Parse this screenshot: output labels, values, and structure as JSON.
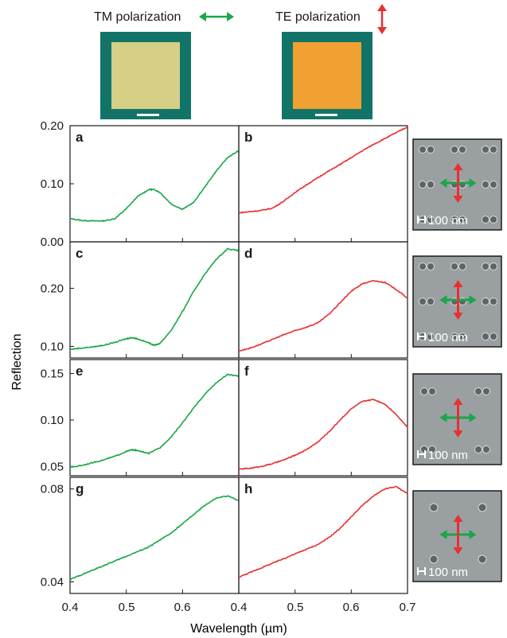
{
  "header": {
    "tm_label": "TM polarization",
    "te_label": "TE polarization",
    "tm_sample_color": "#d6cf86",
    "te_sample_color": "#f0a132",
    "frame_color": "#127468"
  },
  "colors": {
    "tm": "#1aa64a",
    "te": "#e8302f",
    "micrograph_bg": "#9aa0a2"
  },
  "axes": {
    "xlabel": "Wavelength (µm)",
    "ylabel": "Reflection"
  },
  "micrographs": [
    {
      "scale_label": "100 nm"
    },
    {
      "scale_label": "100 nm"
    },
    {
      "scale_label": "100 nm"
    },
    {
      "scale_label": "100 nm"
    }
  ],
  "chart_data": [
    {
      "type": "line",
      "panel": "a",
      "polarization": "TM",
      "color": "#1aa64a",
      "xlim": [
        0.4,
        0.7
      ],
      "ylim": [
        0.0,
        0.2
      ],
      "yticks": [
        "0.00",
        "0.10",
        "0.20"
      ],
      "x": [
        0.4,
        0.42,
        0.44,
        0.46,
        0.48,
        0.5,
        0.52,
        0.54,
        0.55,
        0.56,
        0.58,
        0.6,
        0.62,
        0.64,
        0.66,
        0.68,
        0.7
      ],
      "y": [
        0.04,
        0.037,
        0.036,
        0.036,
        0.04,
        0.057,
        0.078,
        0.09,
        0.09,
        0.085,
        0.065,
        0.056,
        0.068,
        0.095,
        0.122,
        0.145,
        0.157
      ]
    },
    {
      "type": "line",
      "panel": "b",
      "polarization": "TE",
      "color": "#e8302f",
      "xlim": [
        0.4,
        0.7
      ],
      "ylim": [
        0.0,
        0.2
      ],
      "yticks": [],
      "x": [
        0.4,
        0.42,
        0.44,
        0.46,
        0.48,
        0.5,
        0.52,
        0.54,
        0.56,
        0.58,
        0.6,
        0.62,
        0.64,
        0.66,
        0.68,
        0.7
      ],
      "y": [
        0.05,
        0.052,
        0.054,
        0.058,
        0.07,
        0.085,
        0.098,
        0.11,
        0.122,
        0.133,
        0.145,
        0.157,
        0.168,
        0.178,
        0.188,
        0.198
      ]
    },
    {
      "type": "line",
      "panel": "c",
      "polarization": "TM",
      "color": "#1aa64a",
      "xlim": [
        0.4,
        0.7
      ],
      "ylim": [
        0.08,
        0.28
      ],
      "yticks": [
        "0.10",
        "0.20"
      ],
      "x": [
        0.4,
        0.42,
        0.44,
        0.46,
        0.48,
        0.5,
        0.51,
        0.52,
        0.54,
        0.55,
        0.56,
        0.58,
        0.6,
        0.62,
        0.64,
        0.66,
        0.68,
        0.7
      ],
      "y": [
        0.095,
        0.097,
        0.099,
        0.102,
        0.107,
        0.113,
        0.115,
        0.113,
        0.106,
        0.102,
        0.105,
        0.128,
        0.16,
        0.195,
        0.225,
        0.25,
        0.268,
        0.265
      ]
    },
    {
      "type": "line",
      "panel": "d",
      "polarization": "TE",
      "color": "#e8302f",
      "xlim": [
        0.4,
        0.7
      ],
      "ylim": [
        0.08,
        0.28
      ],
      "yticks": [],
      "x": [
        0.4,
        0.42,
        0.44,
        0.46,
        0.48,
        0.5,
        0.52,
        0.54,
        0.56,
        0.58,
        0.6,
        0.62,
        0.64,
        0.66,
        0.68,
        0.7
      ],
      "y": [
        0.092,
        0.097,
        0.104,
        0.112,
        0.12,
        0.127,
        0.133,
        0.14,
        0.155,
        0.175,
        0.195,
        0.208,
        0.213,
        0.21,
        0.198,
        0.183
      ]
    },
    {
      "type": "line",
      "panel": "e",
      "polarization": "TM",
      "color": "#1aa64a",
      "xlim": [
        0.4,
        0.7
      ],
      "ylim": [
        0.04,
        0.165
      ],
      "yticks": [
        "0.05",
        "0.10",
        "0.15"
      ],
      "x": [
        0.4,
        0.42,
        0.44,
        0.46,
        0.48,
        0.5,
        0.51,
        0.52,
        0.54,
        0.56,
        0.58,
        0.6,
        0.62,
        0.64,
        0.66,
        0.68,
        0.7
      ],
      "y": [
        0.049,
        0.051,
        0.054,
        0.057,
        0.061,
        0.066,
        0.068,
        0.067,
        0.064,
        0.07,
        0.082,
        0.097,
        0.113,
        0.128,
        0.14,
        0.149,
        0.147
      ]
    },
    {
      "type": "line",
      "panel": "f",
      "polarization": "TE",
      "color": "#e8302f",
      "xlim": [
        0.4,
        0.7
      ],
      "ylim": [
        0.04,
        0.165
      ],
      "yticks": [],
      "x": [
        0.4,
        0.42,
        0.44,
        0.46,
        0.48,
        0.5,
        0.52,
        0.54,
        0.56,
        0.58,
        0.6,
        0.62,
        0.64,
        0.66,
        0.68,
        0.7
      ],
      "y": [
        0.047,
        0.048,
        0.05,
        0.053,
        0.057,
        0.062,
        0.068,
        0.076,
        0.087,
        0.1,
        0.112,
        0.12,
        0.122,
        0.117,
        0.106,
        0.092
      ]
    },
    {
      "type": "line",
      "panel": "g",
      "polarization": "TM",
      "color": "#1aa64a",
      "xlim": [
        0.4,
        0.7
      ],
      "ylim": [
        0.035,
        0.085
      ],
      "yticks": [
        "0.04",
        "0.08"
      ],
      "x": [
        0.4,
        0.42,
        0.44,
        0.46,
        0.48,
        0.5,
        0.52,
        0.54,
        0.56,
        0.58,
        0.6,
        0.62,
        0.64,
        0.66,
        0.68,
        0.7
      ],
      "y": [
        0.041,
        0.043,
        0.045,
        0.047,
        0.049,
        0.051,
        0.053,
        0.055,
        0.058,
        0.061,
        0.065,
        0.069,
        0.073,
        0.076,
        0.077,
        0.075
      ]
    },
    {
      "type": "line",
      "panel": "h",
      "polarization": "TE",
      "color": "#e8302f",
      "xlim": [
        0.4,
        0.7
      ],
      "ylim": [
        0.035,
        0.085
      ],
      "yticks": [],
      "x": [
        0.4,
        0.42,
        0.44,
        0.46,
        0.48,
        0.5,
        0.52,
        0.54,
        0.56,
        0.58,
        0.6,
        0.62,
        0.64,
        0.66,
        0.68,
        0.7
      ],
      "y": [
        0.042,
        0.044,
        0.046,
        0.048,
        0.05,
        0.052,
        0.054,
        0.056,
        0.059,
        0.063,
        0.068,
        0.073,
        0.077,
        0.08,
        0.081,
        0.078
      ]
    }
  ],
  "xticks": [
    "0.4",
    "0.5",
    "0.6",
    "0.7"
  ],
  "xticks_left": [
    "0.4",
    "0.5",
    "0.6",
    "0.4"
  ]
}
